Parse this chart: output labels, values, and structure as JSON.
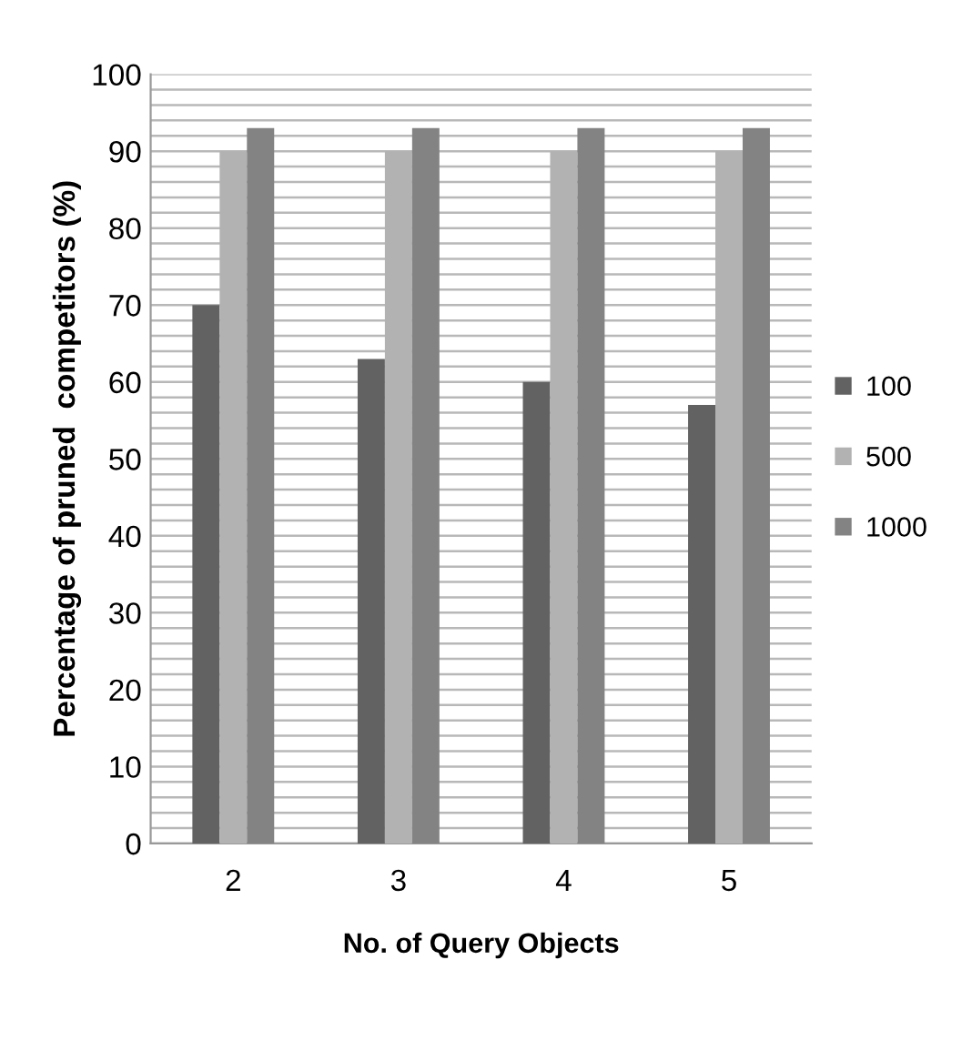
{
  "chart_data": {
    "type": "bar",
    "xlabel": "No. of Query Objects",
    "ylabel": "Percentage of pruned  competitors (%)",
    "categories": [
      "2",
      "3",
      "4",
      "5"
    ],
    "series": [
      {
        "name": "100",
        "color": "#626262",
        "values": [
          70,
          63,
          60,
          57
        ]
      },
      {
        "name": "500",
        "color": "#b2b2b2",
        "values": [
          90,
          90,
          90,
          90
        ]
      },
      {
        "name": "1000",
        "color": "#838383",
        "values": [
          93,
          93,
          93,
          93
        ]
      }
    ],
    "ylim": [
      0,
      100
    ],
    "yticks": [
      0,
      {
        "value": 2,
        "label": null
      },
      {
        "value": 4,
        "label": null
      },
      {
        "value": 6,
        "label": null
      },
      {
        "value": 8,
        "label": null
      },
      10,
      {
        "value": 12,
        "label": null
      },
      {
        "value": 14,
        "label": null
      },
      {
        "value": 16,
        "label": null
      },
      {
        "value": 18,
        "label": null
      },
      20,
      {
        "value": 22,
        "label": null
      },
      {
        "value": 24,
        "label": null
      },
      {
        "value": 26,
        "label": null
      },
      {
        "value": 28,
        "label": null
      },
      30,
      {
        "value": 32,
        "label": null
      },
      {
        "value": 34,
        "label": null
      },
      {
        "value": 36,
        "label": null
      },
      {
        "value": 38,
        "label": null
      },
      40,
      {
        "value": 42,
        "label": null
      },
      {
        "value": 44,
        "label": null
      },
      {
        "value": 46,
        "label": null
      },
      {
        "value": 48,
        "label": null
      },
      50,
      {
        "value": 52,
        "label": null
      },
      {
        "value": 54,
        "label": null
      },
      {
        "value": 56,
        "label": null
      },
      {
        "value": 58,
        "label": null
      },
      60,
      {
        "value": 62,
        "label": null
      },
      {
        "value": 64,
        "label": null
      },
      {
        "value": 66,
        "label": null
      },
      {
        "value": 68,
        "label": null
      },
      70,
      {
        "value": 72,
        "label": null
      },
      {
        "value": 74,
        "label": null
      },
      {
        "value": 76,
        "label": null
      },
      {
        "value": 78,
        "label": null
      },
      80,
      {
        "value": 82,
        "label": null
      },
      {
        "value": 84,
        "label": null
      },
      {
        "value": 86,
        "label": null
      },
      {
        "value": 88,
        "label": null
      },
      90,
      {
        "value": 92,
        "label": null
      },
      {
        "value": 94,
        "label": null
      },
      {
        "value": 96,
        "label": null
      },
      {
        "value": 98,
        "label": null
      },
      100
    ],
    "grid": "y",
    "legend": "right"
  }
}
